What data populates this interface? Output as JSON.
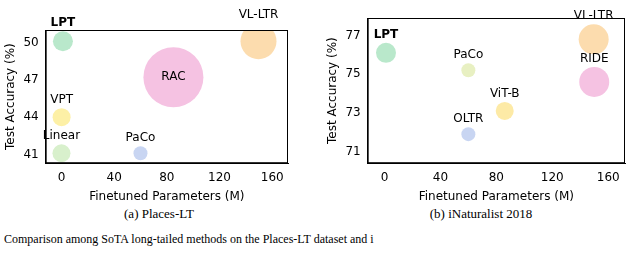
{
  "caption": "Comparison among SoTA long-tailed methods on the Places-LT dataset and i",
  "chart_data": [
    {
      "type": "bubble",
      "title": "(a) Places-LT",
      "xlabel": "Finetuned Parameters (M)",
      "ylabel": "Test Accuracy (%)",
      "xlim": [
        -12,
        172
      ],
      "xticks": [
        0,
        40,
        80,
        120,
        160
      ],
      "ylim": [
        40.3,
        51.0
      ],
      "yticks": [
        41,
        44,
        47,
        50
      ],
      "grid": false,
      "series": [
        {
          "name": "LPT",
          "color": "#b9e8cb",
          "x": [
            1.1
          ],
          "values": [
            50.1
          ],
          "sizes": [
            10
          ]
        },
        {
          "name": "VL-LTR",
          "color": "#fcdcae",
          "x": [
            149.6
          ],
          "values": [
            50.1
          ],
          "sizes": [
            18
          ]
        },
        {
          "name": "RAC",
          "color": "#f5c2e2",
          "x": [
            85
          ],
          "values": [
            47.2
          ],
          "sizes": [
            30
          ]
        },
        {
          "name": "VPT",
          "color": "#fdf0a6",
          "x": [
            0.1
          ],
          "values": [
            44.0
          ],
          "sizes": [
            9
          ]
        },
        {
          "name": "Linear",
          "color": "#d8f0cc",
          "x": [
            0
          ],
          "values": [
            41.1
          ],
          "sizes": [
            9
          ]
        },
        {
          "name": "PaCo",
          "color": "#c8d5f2",
          "x": [
            60
          ],
          "values": [
            41.1
          ],
          "sizes": [
            7
          ]
        }
      ]
    },
    {
      "type": "bubble",
      "title": "(b) iNaturalist 2018",
      "xlabel": "Finetuned Parameters (M)",
      "ylabel": "Test Accuracy (%)",
      "xlim": [
        -12,
        172
      ],
      "xticks": [
        0,
        40,
        80,
        120,
        160
      ],
      "ylim": [
        70.4,
        77.9
      ],
      "yticks": [
        71,
        73,
        75,
        77
      ],
      "grid": false,
      "series": [
        {
          "name": "LPT",
          "color": "#b9e8cb",
          "x": [
            1.1
          ],
          "values": [
            76.1
          ],
          "sizes": [
            10
          ]
        },
        {
          "name": "VL-LTR",
          "color": "#fcdcae",
          "x": [
            149.6
          ],
          "values": [
            76.8
          ],
          "sizes": [
            15
          ]
        },
        {
          "name": "PaCo",
          "color": "#e8f0c2",
          "x": [
            60
          ],
          "values": [
            75.2
          ],
          "sizes": [
            7
          ]
        },
        {
          "name": "RIDE",
          "color": "#f5c2e2",
          "x": [
            150
          ],
          "values": [
            74.6
          ],
          "sizes": [
            15
          ]
        },
        {
          "name": "ViT-B",
          "color": "#fdeaa6",
          "x": [
            86
          ],
          "values": [
            73.1
          ],
          "sizes": [
            9
          ]
        },
        {
          "name": "OLTR",
          "color": "#c8d5f2",
          "x": [
            60
          ],
          "values": [
            71.9
          ],
          "sizes": [
            7
          ]
        }
      ]
    }
  ]
}
